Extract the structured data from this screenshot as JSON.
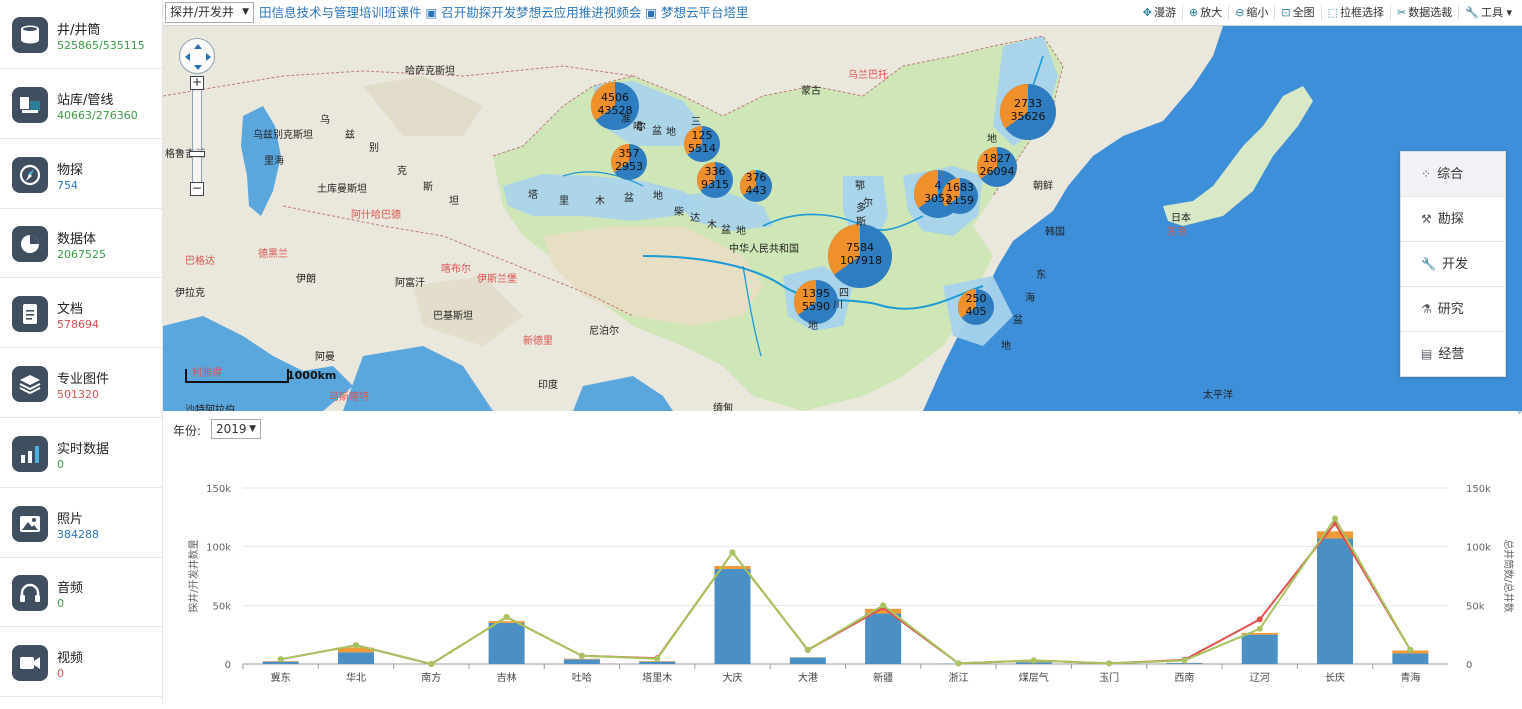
{
  "sidebar": {
    "items": [
      {
        "name": "井/井筒",
        "count": "525865/535115",
        "icon": "cylinder-icon",
        "color": "#3c9b48"
      },
      {
        "name": "站库/管线",
        "count": "40663/276360",
        "icon": "station-icon",
        "color": "#3c9b48"
      },
      {
        "name": "物探",
        "count": "754",
        "icon": "compass-icon",
        "color": "#2d75b8"
      },
      {
        "name": "数据体",
        "count": "2067525",
        "icon": "pie-chart-icon",
        "color": "#3c9b48"
      },
      {
        "name": "文档",
        "count": "578694",
        "icon": "document-icon",
        "color": "#d9534f"
      },
      {
        "name": "专业图件",
        "count": "501320",
        "icon": "layers-icon",
        "color": "#d9534f"
      },
      {
        "name": "实时数据",
        "count": "0",
        "icon": "bar-chart-icon",
        "color": "#3c9b48"
      },
      {
        "name": "照片",
        "count": "384288",
        "icon": "image-icon",
        "color": "#2d75b8"
      },
      {
        "name": "音频",
        "count": "0",
        "icon": "headphones-icon",
        "color": "#3c9b48"
      },
      {
        "name": "视频",
        "count": "0",
        "icon": "video-icon",
        "color": "#d9534f"
      }
    ]
  },
  "topbar": {
    "well_type": "探井/开发井",
    "marquee": "田信息技术与管理培训班课件 ▣ 召开勘探开发梦想云应用推进视频会 ▣ 梦想云平台塔里",
    "tools": [
      {
        "label": "漫游",
        "icon": "pan-icon"
      },
      {
        "label": "放大",
        "icon": "zoom-in-icon"
      },
      {
        "label": "缩小",
        "icon": "zoom-out-icon"
      },
      {
        "label": "全图",
        "icon": "full-extent-icon"
      },
      {
        "label": "拉框选择",
        "icon": "box-select-icon"
      },
      {
        "label": "数据选裁",
        "icon": "clip-icon"
      },
      {
        "label": "工具 ▾",
        "icon": "wrench-icon"
      }
    ]
  },
  "map": {
    "scale_label": "1000km",
    "side_panel": [
      {
        "label": "综合",
        "icon": "grid-icon"
      },
      {
        "label": "勘探",
        "icon": "drill-icon"
      },
      {
        "label": "开发",
        "icon": "wrench-icon"
      },
      {
        "label": "研究",
        "icon": "flask-icon"
      },
      {
        "label": "经营",
        "icon": "clipboard-icon"
      }
    ],
    "labels": [
      {
        "text": "哈萨克斯坦",
        "x": 242,
        "y": 36
      },
      {
        "text": "乌兹别克斯坦",
        "x": 90,
        "y": 100
      },
      {
        "text": "乌",
        "x": 157,
        "y": 85
      },
      {
        "text": "兹",
        "x": 182,
        "y": 100
      },
      {
        "text": "别",
        "x": 206,
        "y": 113
      },
      {
        "text": "克",
        "x": 234,
        "y": 136
      },
      {
        "text": "斯",
        "x": 260,
        "y": 152
      },
      {
        "text": "坦",
        "x": 286,
        "y": 166
      },
      {
        "text": "土库曼斯坦",
        "x": 154,
        "y": 154
      },
      {
        "text": "里海",
        "x": 101,
        "y": 126
      },
      {
        "text": "格鲁吉亚",
        "x": 2,
        "y": 119
      },
      {
        "text": "伊朗",
        "x": 133,
        "y": 244
      },
      {
        "text": "阿富汗",
        "x": 232,
        "y": 248
      },
      {
        "text": "伊拉克",
        "x": 12,
        "y": 258
      },
      {
        "text": "巴基斯坦",
        "x": 270,
        "y": 281
      },
      {
        "text": "阿曼",
        "x": 152,
        "y": 322
      },
      {
        "text": "印度",
        "x": 375,
        "y": 350
      },
      {
        "text": "尼泊尔",
        "x": 426,
        "y": 296
      },
      {
        "text": "缅甸",
        "x": 550,
        "y": 373
      },
      {
        "text": "沙特阿拉伯",
        "x": 22,
        "y": 375
      },
      {
        "text": "蒙古",
        "x": 638,
        "y": 56
      },
      {
        "text": "朝鲜",
        "x": 870,
        "y": 151
      },
      {
        "text": "韩国",
        "x": 882,
        "y": 197
      },
      {
        "text": "日本",
        "x": 1008,
        "y": 183
      },
      {
        "text": "太平洋",
        "x": 1040,
        "y": 360
      },
      {
        "text": "中华人民共和国",
        "x": 566,
        "y": 214
      },
      {
        "text": "准",
        "x": 458,
        "y": 84
      },
      {
        "text": "噶",
        "x": 470,
        "y": 92
      },
      {
        "text": "尔",
        "x": 473,
        "y": 92
      },
      {
        "text": "盆",
        "x": 489,
        "y": 96
      },
      {
        "text": "地",
        "x": 503,
        "y": 97
      },
      {
        "text": "塔",
        "x": 365,
        "y": 160
      },
      {
        "text": "里",
        "x": 396,
        "y": 166
      },
      {
        "text": "木",
        "x": 432,
        "y": 166
      },
      {
        "text": "盆",
        "x": 461,
        "y": 163
      },
      {
        "text": "地",
        "x": 490,
        "y": 161
      },
      {
        "text": "柴",
        "x": 511,
        "y": 177
      },
      {
        "text": "达",
        "x": 527,
        "y": 183
      },
      {
        "text": "木",
        "x": 544,
        "y": 190
      },
      {
        "text": "盆",
        "x": 558,
        "y": 195
      },
      {
        "text": "地",
        "x": 573,
        "y": 196
      },
      {
        "text": "鄂",
        "x": 692,
        "y": 151
      },
      {
        "text": "尔",
        "x": 700,
        "y": 168
      },
      {
        "text": "多",
        "x": 693,
        "y": 173
      },
      {
        "text": "斯",
        "x": 693,
        "y": 187
      },
      {
        "text": "四",
        "x": 676,
        "y": 258
      },
      {
        "text": "川",
        "x": 670,
        "y": 270
      },
      {
        "text": "地",
        "x": 645,
        "y": 291
      },
      {
        "text": "东",
        "x": 873,
        "y": 240
      },
      {
        "text": "海",
        "x": 862,
        "y": 263
      },
      {
        "text": "盆",
        "x": 850,
        "y": 285
      },
      {
        "text": "地",
        "x": 838,
        "y": 311
      },
      {
        "text": "地",
        "x": 824,
        "y": 104
      },
      {
        "text": "三",
        "x": 528,
        "y": 87
      }
    ],
    "red_labels": [
      {
        "text": "乌兰巴托",
        "x": 685,
        "y": 40
      },
      {
        "text": "阿什哈巴德",
        "x": 188,
        "y": 180
      },
      {
        "text": "德黑兰",
        "x": 95,
        "y": 219
      },
      {
        "text": "巴格达",
        "x": 22,
        "y": 226
      },
      {
        "text": "喀布尔",
        "x": 278,
        "y": 234
      },
      {
        "text": "伊斯兰堡",
        "x": 314,
        "y": 244
      },
      {
        "text": "新德里",
        "x": 360,
        "y": 306
      },
      {
        "text": "利雅得",
        "x": 29,
        "y": 338
      },
      {
        "text": "马斯喀特",
        "x": 166,
        "y": 362
      },
      {
        "text": "东京",
        "x": 1004,
        "y": 197
      }
    ],
    "clusters": [
      {
        "value": "43528",
        "x": 452,
        "y": 80,
        "r": 24,
        "alt": "4506"
      },
      {
        "value": "2953",
        "x": 466,
        "y": 136,
        "r": 18,
        "alt": "357"
      },
      {
        "value": "5514",
        "x": 539,
        "y": 118,
        "r": 18,
        "alt": "125"
      },
      {
        "value": "9315",
        "x": 552,
        "y": 154,
        "r": 18,
        "alt": "336"
      },
      {
        "value": "443",
        "x": 593,
        "y": 160,
        "r": 16,
        "alt": "376"
      },
      {
        "value": "107918",
        "x": 697,
        "y": 230,
        "r": 32,
        "alt": "7584"
      },
      {
        "value": "5590",
        "x": 653,
        "y": 276,
        "r": 22,
        "alt": "1395"
      },
      {
        "value": "3052",
        "x": 775,
        "y": 168,
        "r": 24,
        "alt": "4"
      },
      {
        "value": "2159",
        "x": 797,
        "y": 170,
        "r": 18,
        "alt": "1683"
      },
      {
        "value": "26094",
        "x": 834,
        "y": 141,
        "r": 20,
        "alt": "1827"
      },
      {
        "value": "35626",
        "x": 865,
        "y": 86,
        "r": 28,
        "alt": "2733"
      },
      {
        "value": "405",
        "x": 813,
        "y": 281,
        "r": 18,
        "alt": "250"
      }
    ]
  },
  "chart_controls": {
    "year_label": "年份:",
    "year_value": "2019"
  },
  "chart_data": {
    "type": "bar",
    "title": "",
    "ylabel": "探井/开发井数量",
    "ylabel_right": "总井筒数/总井数",
    "ylim": [
      0,
      150000
    ],
    "yticks": [
      "0",
      "50k",
      "100k",
      "150k"
    ],
    "categories": [
      "冀东",
      "华北",
      "南方",
      "吉林",
      "吐哈",
      "塔里木",
      "大庆",
      "大港",
      "新疆",
      "浙江",
      "煤层气",
      "玉门",
      "西南",
      "辽河",
      "长庆",
      "青海"
    ],
    "series": [
      {
        "name": "",
        "type": "bar",
        "color": "#4a90c4",
        "values": [
          2000,
          10000,
          0,
          35000,
          4000,
          2000,
          81000,
          5500,
          43000,
          300,
          1500,
          200,
          800,
          25000,
          107000,
          9000
        ]
      },
      {
        "name": "",
        "type": "bar",
        "color": "#f29a35",
        "values": [
          500,
          4000,
          0,
          1500,
          500,
          500,
          2500,
          200,
          4000,
          0,
          500,
          0,
          200,
          1500,
          6000,
          2500
        ]
      },
      {
        "name": "",
        "type": "line",
        "color": "#e0504e",
        "values": [
          4000,
          16000,
          0,
          40000,
          7000,
          5000,
          95000,
          12000,
          48000,
          500,
          3000,
          500,
          3500,
          38000,
          120000,
          12000
        ]
      },
      {
        "name": "",
        "type": "line",
        "color": "#a8c460",
        "values": [
          4000,
          16000,
          0,
          40000,
          7000,
          4500,
          95000,
          12000,
          50000,
          500,
          3000,
          500,
          3000,
          30000,
          124000,
          12000
        ]
      }
    ]
  }
}
